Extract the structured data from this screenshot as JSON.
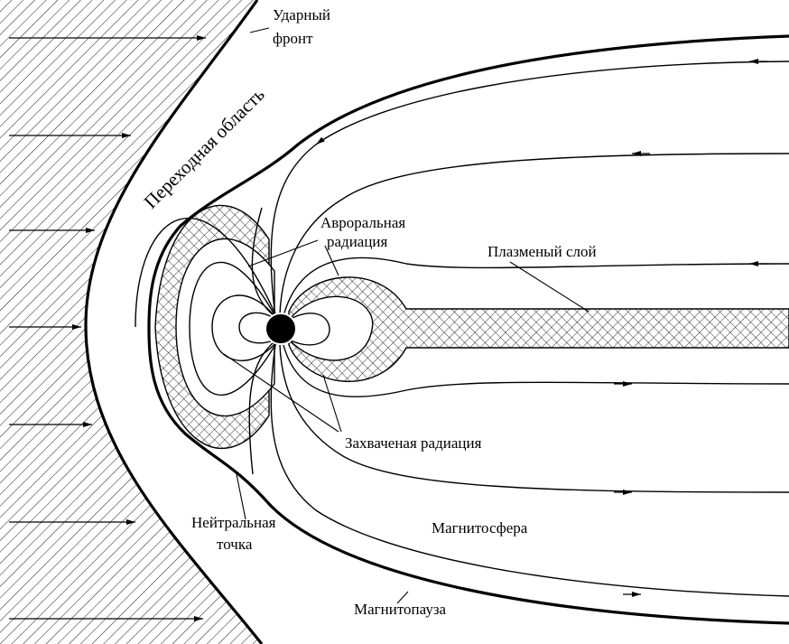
{
  "diagram": {
    "bow_shock": [
      "Ударный",
      "фронт"
    ],
    "transition_region": "Переходная область",
    "auroral_radiation": [
      "Авроральная",
      "радиация"
    ],
    "plasma_sheet": "Плазменый слой",
    "trapped_radiation": "Захваченая радиация",
    "magnetosphere": "Магнитосфера",
    "neutral_point": [
      "Нейтральная",
      "точка"
    ],
    "magnetopause": "Магнитопауза"
  }
}
